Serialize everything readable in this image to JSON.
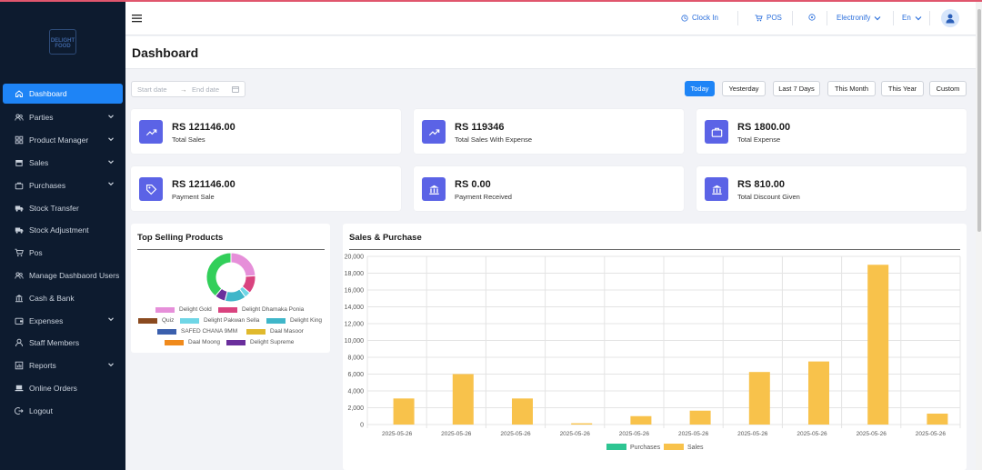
{
  "sidebar": {
    "logo_text": [
      "DELIGHT",
      "FOOD"
    ],
    "items": [
      {
        "label": "Dashboard",
        "icon": "home-icon",
        "active": true,
        "chevron": false
      },
      {
        "label": "Parties",
        "icon": "users-icon",
        "active": false,
        "chevron": true
      },
      {
        "label": "Product Manager",
        "icon": "grid-icon",
        "active": false,
        "chevron": true
      },
      {
        "label": "Sales",
        "icon": "store-icon",
        "active": false,
        "chevron": true
      },
      {
        "label": "Purchases",
        "icon": "bag-icon",
        "active": false,
        "chevron": true
      },
      {
        "label": "Stock Transfer",
        "icon": "truck-icon",
        "active": false,
        "chevron": false
      },
      {
        "label": "Stock Adjustment",
        "icon": "truck-icon",
        "active": false,
        "chevron": false
      },
      {
        "label": "Pos",
        "icon": "cart-icon",
        "active": false,
        "chevron": false
      },
      {
        "label": "Manage Dashbaord Users",
        "icon": "users-icon",
        "active": false,
        "chevron": false
      },
      {
        "label": "Cash & Bank",
        "icon": "bank-icon",
        "active": false,
        "chevron": false
      },
      {
        "label": "Expenses",
        "icon": "wallet-icon",
        "active": false,
        "chevron": true
      },
      {
        "label": "Staff Members",
        "icon": "user-icon",
        "active": false,
        "chevron": false
      },
      {
        "label": "Reports",
        "icon": "report-icon",
        "active": false,
        "chevron": true
      },
      {
        "label": "Online Orders",
        "icon": "laptop-icon",
        "active": false,
        "chevron": false
      },
      {
        "label": "Logout",
        "icon": "logout-icon",
        "active": false,
        "chevron": false
      }
    ]
  },
  "header": {
    "clock_in": "Clock In",
    "pos": "POS",
    "store": "Electronify",
    "language": "En"
  },
  "page": {
    "title": "Dashboard"
  },
  "filters": {
    "start_placeholder": "Start date",
    "end_placeholder": "End date",
    "arrow": "→",
    "buttons": [
      {
        "label": "Today",
        "active": true
      },
      {
        "label": "Yesterday",
        "active": false
      },
      {
        "label": "Last 7 Days",
        "active": false
      },
      {
        "label": "This Month",
        "active": false
      },
      {
        "label": "This Year",
        "active": false
      },
      {
        "label": "Custom",
        "active": false
      }
    ]
  },
  "stats": [
    {
      "amount": "RS 121146.00",
      "label": "Total Sales",
      "icon": "trend-up-icon"
    },
    {
      "amount": "RS 119346",
      "label": "Total Sales With Expense",
      "icon": "trend-up-icon"
    },
    {
      "amount": "RS 1800.00",
      "label": "Total Expense",
      "icon": "briefcase-icon"
    },
    {
      "amount": "RS 121146.00",
      "label": "Payment Sale",
      "icon": "tag-icon"
    },
    {
      "amount": "RS 0.00",
      "label": "Payment Received",
      "icon": "bank-icon"
    },
    {
      "amount": "RS 810.00",
      "label": "Total Discount Given",
      "icon": "bank-icon"
    }
  ],
  "top_selling": {
    "title": "Top Selling Products",
    "legend": [
      {
        "name": "Delight Gold",
        "color": "#e68fd9"
      },
      {
        "name": "Delight Dhamaka Ponia",
        "color": "#d9437f"
      },
      {
        "name": "Quiz",
        "color": "#8a4a1f"
      },
      {
        "name": "Delight Pakwan Sella",
        "color": "#6fd6e6"
      },
      {
        "name": "Delight King",
        "color": "#3fb6c9"
      },
      {
        "name": "SAFED CHANA 9MM",
        "color": "#3a5fad"
      },
      {
        "name": "Daal Masoor",
        "color": "#e0b92d"
      },
      {
        "name": "Daal Moong",
        "color": "#f08a1c"
      },
      {
        "name": "Delight Supreme",
        "color": "#6a2f9c"
      }
    ]
  },
  "chart_data": {
    "type": "bar",
    "title": "Sales & Purchase",
    "categories": [
      "2025-05-26",
      "2025-05-26",
      "2025-05-26",
      "2025-05-26",
      "2025-05-26",
      "2025-05-26",
      "2025-05-26",
      "2025-05-26",
      "2025-05-26",
      "2025-05-26"
    ],
    "series": [
      {
        "name": "Purchases",
        "color": "#2ec592",
        "values": [
          0,
          0,
          0,
          0,
          0,
          0,
          0,
          0,
          0,
          0
        ]
      },
      {
        "name": "Sales",
        "color": "#f8c24b",
        "values": [
          3100,
          6000,
          3100,
          150,
          1000,
          1650,
          6250,
          7500,
          19000,
          1300
        ]
      }
    ],
    "ylim": [
      0,
      20000
    ],
    "yticks": [
      "0",
      "2,000",
      "4,000",
      "6,000",
      "8,000",
      "10,000",
      "12,000",
      "14,000",
      "16,000",
      "18,000",
      "20,000"
    ],
    "grid": true,
    "legend": "bottom"
  }
}
